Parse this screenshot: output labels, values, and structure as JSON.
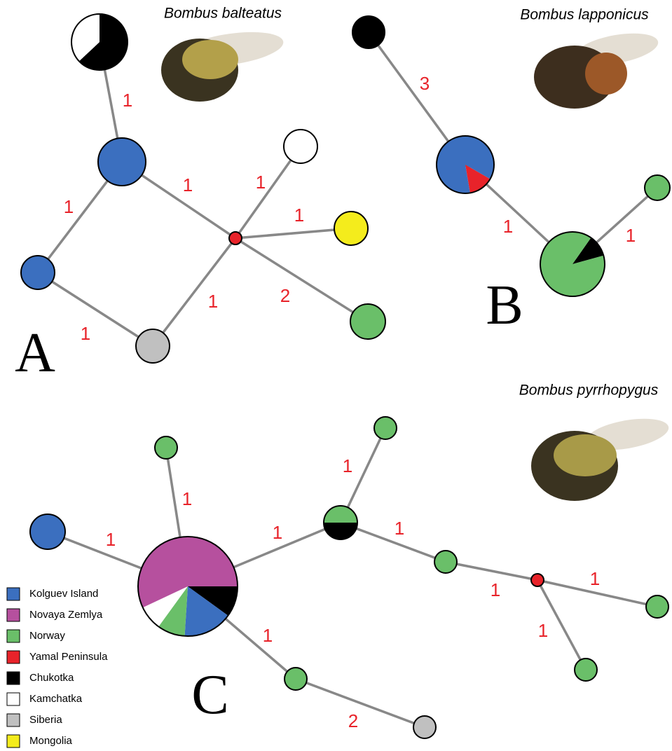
{
  "panels": [
    {
      "letter": "A",
      "species": "Bombus balteatus",
      "edge_labels": [
        "1",
        "1",
        "1",
        "1",
        "1",
        "1",
        "1",
        "2"
      ]
    },
    {
      "letter": "B",
      "species": "Bombus lapponicus",
      "edge_labels": [
        "3",
        "1",
        "1"
      ]
    },
    {
      "letter": "C",
      "species": "Bombus pyrrhopygus",
      "edge_labels": [
        "1",
        "1",
        "1",
        "1",
        "1",
        "1",
        "1",
        "1",
        "1",
        "2"
      ]
    }
  ],
  "legend": [
    {
      "name": "Kolguev Island",
      "color": "#3b6fbf"
    },
    {
      "name": "Novaya Zemlya",
      "color": "#b6509e"
    },
    {
      "name": "Norway",
      "color": "#6abf69"
    },
    {
      "name": "Yamal Peninsula",
      "color": "#e8232a"
    },
    {
      "name": "Chukotka",
      "color": "#000000"
    },
    {
      "name": "Kamchatka",
      "color": "#ffffff"
    },
    {
      "name": "Siberia",
      "color": "#c0c0c0"
    },
    {
      "name": "Mongolia",
      "color": "#f4ec1c"
    }
  ]
}
